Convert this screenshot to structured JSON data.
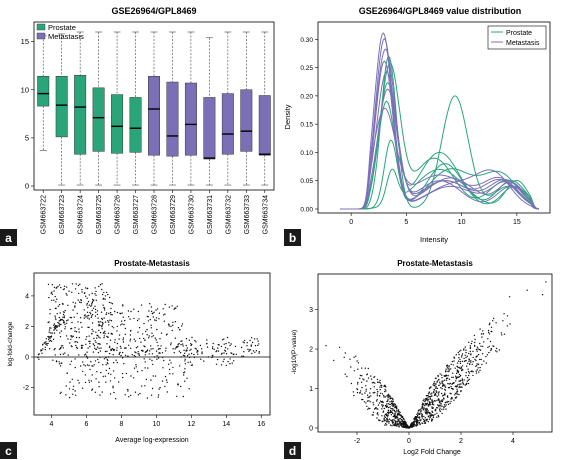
{
  "colors": {
    "prostate": "#2aa57a",
    "metastasis": "#7b70b8",
    "points": "#111111",
    "panel_label_bg": "#1a1a1a",
    "panel_label_text": "#ffffff"
  },
  "panel_labels": [
    "a",
    "b",
    "c",
    "d"
  ],
  "chart_data": [
    {
      "panel": "a",
      "type": "box",
      "title": "GSE26964/GPL8469",
      "xlabel": "",
      "ylabel": "",
      "ylim": [
        0,
        16
      ],
      "yticks": [
        0,
        5,
        10,
        15
      ],
      "legend": {
        "placement": "top-left",
        "entries": [
          {
            "label": "Prostate",
            "group": "prostate"
          },
          {
            "label": "Metastasis",
            "group": "metastasis"
          }
        ]
      },
      "categories": [
        "GSM663722",
        "GSM663723",
        "GSM663724",
        "GSM663725",
        "GSM663726",
        "GSM663727",
        "GSM663728",
        "GSM663729",
        "GSM663730",
        "GSM663731",
        "GSM663732",
        "GSM663733",
        "GSM663734"
      ],
      "groups": [
        "prostate",
        "prostate",
        "prostate",
        "prostate",
        "prostate",
        "prostate",
        "metastasis",
        "metastasis",
        "metastasis",
        "metastasis",
        "metastasis",
        "metastasis",
        "metastasis"
      ],
      "boxes": [
        {
          "min": 3.7,
          "q1": 8.3,
          "median": 9.6,
          "q3": 11.4,
          "max": 15.6
        },
        {
          "min": 0.1,
          "q1": 5.1,
          "median": 8.4,
          "q3": 11.4,
          "max": 15.8
        },
        {
          "min": 0.1,
          "q1": 3.3,
          "median": 8.2,
          "q3": 11.5,
          "max": 16.0
        },
        {
          "min": 0.1,
          "q1": 3.6,
          "median": 7.1,
          "q3": 10.2,
          "max": 16.0
        },
        {
          "min": 0.1,
          "q1": 3.4,
          "median": 6.2,
          "q3": 9.5,
          "max": 16.0
        },
        {
          "min": 0.1,
          "q1": 3.5,
          "median": 6.0,
          "q3": 9.2,
          "max": 16.0
        },
        {
          "min": 0.1,
          "q1": 3.2,
          "median": 8.0,
          "q3": 11.4,
          "max": 16.0
        },
        {
          "min": 0.1,
          "q1": 3.1,
          "median": 5.2,
          "q3": 10.8,
          "max": 16.0
        },
        {
          "min": 0.1,
          "q1": 3.2,
          "median": 6.4,
          "q3": 10.7,
          "max": 16.0
        },
        {
          "min": 0.1,
          "q1": 2.8,
          "median": 2.9,
          "q3": 9.2,
          "max": 15.4
        },
        {
          "min": 0.1,
          "q1": 3.3,
          "median": 5.4,
          "q3": 9.6,
          "max": 16.0
        },
        {
          "min": 0.1,
          "q1": 3.6,
          "median": 5.7,
          "q3": 10.0,
          "max": 16.0
        },
        {
          "min": 0.1,
          "q1": 3.2,
          "median": 3.3,
          "q3": 9.4,
          "max": 16.0
        }
      ]
    },
    {
      "panel": "b",
      "type": "line",
      "title": "GSE26964/GPL8469 value distribution",
      "xlabel": "Intensity",
      "ylabel": "Density",
      "xlim": [
        -3,
        18
      ],
      "ylim": [
        0,
        0.32
      ],
      "xticks": [
        0,
        5,
        10,
        15
      ],
      "yticks": [
        0.0,
        0.05,
        0.1,
        0.15,
        0.2,
        0.25,
        0.3
      ],
      "legend": {
        "placement": "top-right",
        "entries": [
          {
            "label": "Prostate",
            "group": "prostate"
          },
          {
            "label": "Metastasis",
            "group": "metastasis"
          }
        ]
      },
      "series": [
        {
          "group": "prostate",
          "p1": {
            "mu": 3.4,
            "sd": 0.7,
            "h": 0.27
          },
          "p2": {
            "mu": 9.4,
            "sd": 1.2,
            "h": 0.2
          },
          "p3": {
            "mu": 14.2,
            "sd": 1.3,
            "h": 0.04
          }
        },
        {
          "group": "prostate",
          "p1": {
            "mu": 3.3,
            "sd": 0.8,
            "h": 0.22
          },
          "p2": {
            "mu": 8.0,
            "sd": 1.8,
            "h": 0.1
          },
          "p3": {
            "mu": 14.5,
            "sd": 1.3,
            "h": 0.05
          }
        },
        {
          "group": "prostate",
          "p1": {
            "mu": 3.5,
            "sd": 0.9,
            "h": 0.25
          },
          "p2": {
            "mu": 7.5,
            "sd": 1.8,
            "h": 0.09
          },
          "p3": {
            "mu": 14.0,
            "sd": 1.5,
            "h": 0.05
          }
        },
        {
          "group": "prostate",
          "p1": {
            "mu": 3.2,
            "sd": 0.8,
            "h": 0.19
          },
          "p2": {
            "mu": 8.5,
            "sd": 1.6,
            "h": 0.08
          },
          "p3": {
            "mu": 14.8,
            "sd": 1.2,
            "h": 0.04
          }
        },
        {
          "group": "prostate",
          "p1": {
            "mu": 3.6,
            "sd": 0.6,
            "h": 0.12
          },
          "p2": {
            "mu": 9.0,
            "sd": 2.0,
            "h": 0.07
          },
          "p3": {
            "mu": 13.5,
            "sd": 1.6,
            "h": 0.06
          }
        },
        {
          "group": "prostate",
          "p1": {
            "mu": 3.7,
            "sd": 0.5,
            "h": 0.06
          },
          "p2": {
            "mu": 8.0,
            "sd": 2.2,
            "h": 0.07
          },
          "p3": {
            "mu": 15.0,
            "sd": 1.0,
            "h": 0.05
          }
        },
        {
          "group": "metastasis",
          "p1": {
            "mu": 2.9,
            "sd": 0.8,
            "h": 0.31
          },
          "p2": {
            "mu": 8.5,
            "sd": 2.0,
            "h": 0.05
          },
          "p3": {
            "mu": 13.5,
            "sd": 1.5,
            "h": 0.05
          }
        },
        {
          "group": "metastasis",
          "p1": {
            "mu": 3.0,
            "sd": 0.8,
            "h": 0.3
          },
          "p2": {
            "mu": 9.0,
            "sd": 2.2,
            "h": 0.04
          },
          "p3": {
            "mu": 14.0,
            "sd": 1.3,
            "h": 0.045
          }
        },
        {
          "group": "metastasis",
          "p1": {
            "mu": 3.1,
            "sd": 0.9,
            "h": 0.28
          },
          "p2": {
            "mu": 8.0,
            "sd": 2.0,
            "h": 0.05
          },
          "p3": {
            "mu": 14.5,
            "sd": 1.3,
            "h": 0.04
          }
        },
        {
          "group": "metastasis",
          "p1": {
            "mu": 3.0,
            "sd": 0.8,
            "h": 0.26
          },
          "p2": {
            "mu": 9.5,
            "sd": 2.5,
            "h": 0.045
          },
          "p3": {
            "mu": 13.0,
            "sd": 1.5,
            "h": 0.05
          }
        },
        {
          "group": "metastasis",
          "p1": {
            "mu": 3.2,
            "sd": 0.9,
            "h": 0.24
          },
          "p2": {
            "mu": 8.5,
            "sd": 2.2,
            "h": 0.05
          },
          "p3": {
            "mu": 14.0,
            "sd": 1.5,
            "h": 0.05
          }
        },
        {
          "group": "metastasis",
          "p1": {
            "mu": 3.3,
            "sd": 0.9,
            "h": 0.21
          },
          "p2": {
            "mu": 9.0,
            "sd": 2.2,
            "h": 0.055
          },
          "p3": {
            "mu": 14.5,
            "sd": 1.2,
            "h": 0.045
          }
        },
        {
          "group": "metastasis",
          "p1": {
            "mu": 3.0,
            "sd": 1.0,
            "h": 0.17
          },
          "p2": {
            "mu": 8.0,
            "sd": 2.5,
            "h": 0.06
          },
          "p3": {
            "mu": 13.5,
            "sd": 1.5,
            "h": 0.05
          }
        }
      ]
    },
    {
      "panel": "c",
      "type": "scatter",
      "title": "Prostate-Metastasis",
      "xlabel": "Average log-expression",
      "ylabel": "log-fold-change",
      "xlim": [
        3,
        16.5
      ],
      "ylim": [
        -3.8,
        5.5
      ],
      "xticks": [
        4,
        6,
        8,
        10,
        12,
        14,
        16
      ],
      "yticks": [
        -2,
        0,
        2,
        4
      ],
      "reference_line_y": 0,
      "clusters": [
        {
          "n": 230,
          "x": [
            3.8,
            7.5
          ],
          "y": [
            0.5,
            4.8
          ]
        },
        {
          "n": 220,
          "x": [
            6.0,
            11.5
          ],
          "y": [
            0.2,
            3.5
          ]
        },
        {
          "n": 150,
          "x": [
            4.0,
            14.5
          ],
          "y": [
            -0.6,
            0.6
          ]
        },
        {
          "n": 90,
          "x": [
            11.5,
            16.0
          ],
          "y": [
            0.0,
            1.3
          ]
        },
        {
          "n": 110,
          "x": [
            4.5,
            12.0
          ],
          "y": [
            -2.8,
            -0.4
          ]
        },
        {
          "n": 60,
          "x": [
            3.2,
            4.8
          ],
          "y": [
            0.0,
            3.0
          ]
        }
      ]
    },
    {
      "panel": "d",
      "type": "scatter",
      "title": "Prostate-Metastasis",
      "xlabel": "Log2 Fold Change",
      "ylabel": "-log10(P-value)",
      "xlim": [
        -3.5,
        5.5
      ],
      "ylim": [
        0,
        3.8
      ],
      "xticks": [
        -2,
        0,
        2,
        4
      ],
      "yticks": [
        0,
        1,
        2,
        3
      ],
      "shape": "volcano",
      "points": 1100
    }
  ]
}
